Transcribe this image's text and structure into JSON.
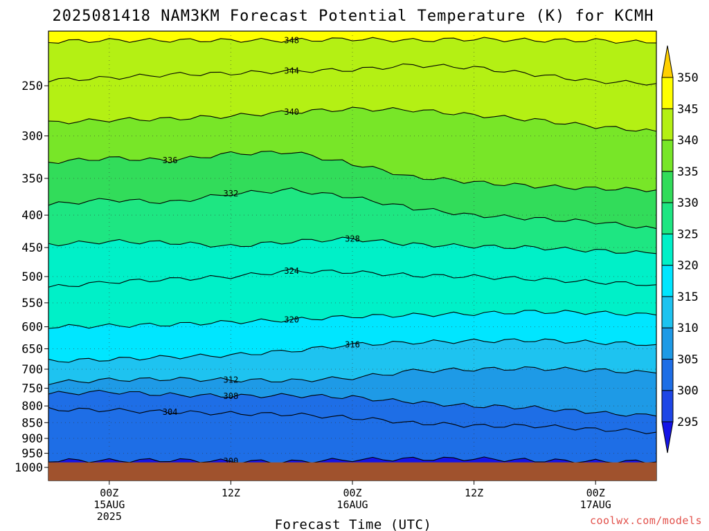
{
  "chart_data": {
    "type": "heatmap",
    "title": "2025081418 NAM3KM Forecast Potential Temperature (K) for KCMH",
    "xlabel": "Forecast Time (UTC)",
    "ylabel": "",
    "x_ticks": [
      {
        "hour": 0,
        "lines": [
          "00Z",
          "15AUG",
          "2025"
        ]
      },
      {
        "hour": 12,
        "lines": [
          "12Z"
        ]
      },
      {
        "hour": 24,
        "lines": [
          "00Z",
          "16AUG"
        ]
      },
      {
        "hour": 36,
        "lines": [
          "12Z"
        ]
      },
      {
        "hour": 48,
        "lines": [
          "00Z",
          "17AUG"
        ]
      }
    ],
    "x_range_hours": [
      -6,
      54
    ],
    "y_ticks_hpa": [
      250,
      300,
      350,
      400,
      450,
      500,
      550,
      600,
      650,
      700,
      750,
      800,
      850,
      900,
      950,
      1000
    ],
    "y_range_hpa": [
      200,
      1030
    ],
    "surface_pressure_hpa": 982,
    "grid": true,
    "colorbar": {
      "levels": [
        295,
        300,
        305,
        310,
        315,
        320,
        325,
        330,
        335,
        340,
        345,
        350
      ],
      "colors": [
        "#1414e6",
        "#1e46e6",
        "#1e6ee6",
        "#1e9ae6",
        "#1ec3f0",
        "#00e6ff",
        "#00f0c8",
        "#1ee682",
        "#32dc5a",
        "#78e628",
        "#b4f014",
        "#ffff00",
        "#ffc800"
      ],
      "below_color": "#1414e6",
      "above_color": "#ffd000"
    },
    "contours": [
      {
        "label": "348",
        "p": [
          213,
          212,
          212,
          212,
          212,
          211,
          212,
          211,
          212,
          212,
          214
        ]
      },
      {
        "label": "344",
        "p": [
          245,
          243,
          240,
          239,
          237,
          236,
          232,
          234,
          240,
          246,
          248
        ]
      },
      {
        "label": "340",
        "p": [
          286,
          283,
          282,
          279,
          275,
          272,
          273,
          278,
          283,
          290,
          295
        ]
      },
      {
        "label": "336",
        "p": [
          330,
          325,
          328,
          320,
          318,
          332,
          348,
          355,
          360,
          363,
          365
        ]
      },
      {
        "label": "332",
        "p": [
          385,
          378,
          382,
          370,
          365,
          375,
          390,
          400,
          405,
          410,
          420
        ]
      },
      {
        "label": "328",
        "p": [
          445,
          440,
          442,
          448,
          440,
          436,
          445,
          448,
          450,
          455,
          460
        ]
      },
      {
        "label": "324",
        "p": [
          520,
          510,
          505,
          500,
          490,
          492,
          498,
          500,
          505,
          510,
          515
        ]
      },
      {
        "label": "320",
        "p": [
          600,
          598,
          595,
          590,
          585,
          578,
          575,
          572,
          568,
          570,
          575
        ]
      },
      {
        "label": "316",
        "p": [
          680,
          675,
          670,
          665,
          655,
          640,
          635,
          632,
          630,
          635,
          640
        ]
      },
      {
        "label": "312",
        "p": [
          735,
          728,
          725,
          728,
          730,
          722,
          705,
          700,
          698,
          702,
          710
        ]
      },
      {
        "label": "308",
        "p": [
          765,
          760,
          768,
          772,
          770,
          775,
          790,
          800,
          805,
          820,
          830
        ]
      },
      {
        "label": "304",
        "p": [
          810,
          812,
          818,
          822,
          825,
          835,
          850,
          860,
          860,
          870,
          880
        ]
      },
      {
        "label": "300",
        "p": [
          975,
          976,
          974,
          978,
          980,
          972,
          970,
          969,
          975,
          978,
          980
        ]
      }
    ],
    "contour_hours": [
      -6,
      0,
      6,
      12,
      18,
      24,
      30,
      36,
      42,
      48,
      54
    ]
  },
  "credit": "coolwx.com/models"
}
